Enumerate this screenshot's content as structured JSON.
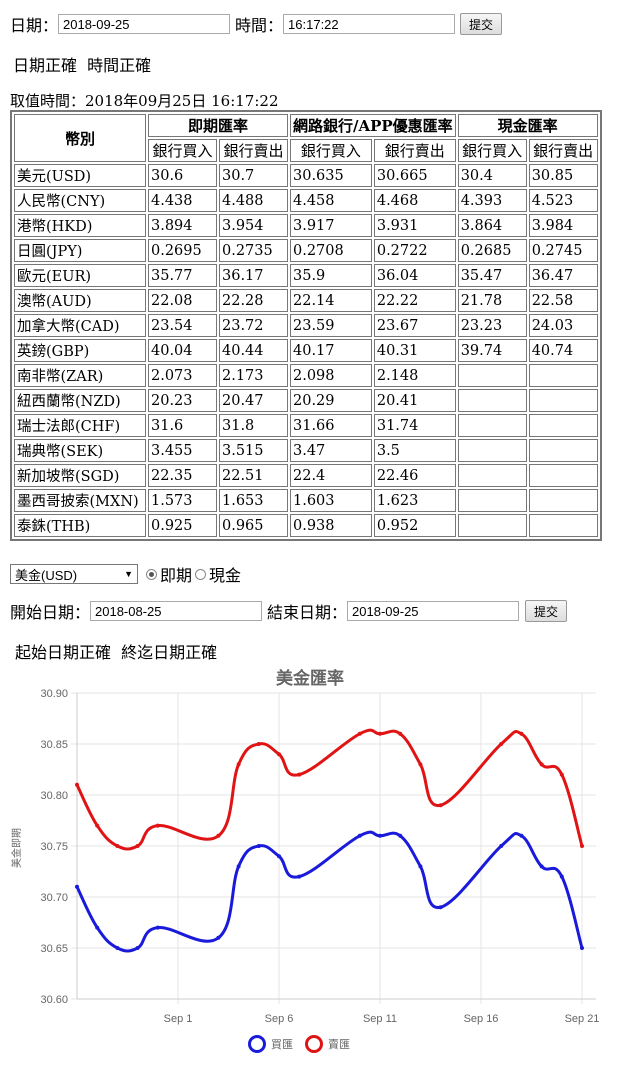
{
  "query": {
    "date_label": "日期：",
    "date_value": "2018-09-25",
    "time_label": "時間：",
    "time_value": "16:17:22",
    "submit_label": "提交",
    "status": "日期正確  時間正確"
  },
  "rates": {
    "fetch_time": "取值時間：2018年09月25日 16:17:22",
    "currency_header": "幣別",
    "groups": [
      "即期匯率",
      "網路銀行/APP優惠匯率",
      "現金匯率"
    ],
    "subheaders": [
      "銀行買入",
      "銀行賣出",
      "銀行買入",
      "銀行賣出",
      "銀行買入",
      "銀行賣出"
    ],
    "rows": [
      {
        "currency": "美元(USD)",
        "values": [
          "30.6",
          "30.7",
          "30.635",
          "30.665",
          "30.4",
          "30.85"
        ]
      },
      {
        "currency": "人民幣(CNY)",
        "values": [
          "4.438",
          "4.488",
          "4.458",
          "4.468",
          "4.393",
          "4.523"
        ]
      },
      {
        "currency": "港幣(HKD)",
        "values": [
          "3.894",
          "3.954",
          "3.917",
          "3.931",
          "3.864",
          "3.984"
        ]
      },
      {
        "currency": "日圓(JPY)",
        "values": [
          "0.2695",
          "0.2735",
          "0.2708",
          "0.2722",
          "0.2685",
          "0.2745"
        ]
      },
      {
        "currency": "歐元(EUR)",
        "values": [
          "35.77",
          "36.17",
          "35.9",
          "36.04",
          "35.47",
          "36.47"
        ]
      },
      {
        "currency": "澳幣(AUD)",
        "values": [
          "22.08",
          "22.28",
          "22.14",
          "22.22",
          "21.78",
          "22.58"
        ]
      },
      {
        "currency": "加拿大幣(CAD)",
        "values": [
          "23.54",
          "23.72",
          "23.59",
          "23.67",
          "23.23",
          "24.03"
        ]
      },
      {
        "currency": "英鎊(GBP)",
        "values": [
          "40.04",
          "40.44",
          "40.17",
          "40.31",
          "39.74",
          "40.74"
        ]
      },
      {
        "currency": "南非幣(ZAR)",
        "values": [
          "2.073",
          "2.173",
          "2.098",
          "2.148",
          "",
          ""
        ]
      },
      {
        "currency": "紐西蘭幣(NZD)",
        "values": [
          "20.23",
          "20.47",
          "20.29",
          "20.41",
          "",
          ""
        ]
      },
      {
        "currency": "瑞士法郎(CHF)",
        "values": [
          "31.6",
          "31.8",
          "31.66",
          "31.74",
          "",
          ""
        ]
      },
      {
        "currency": "瑞典幣(SEK)",
        "values": [
          "3.455",
          "3.515",
          "3.47",
          "3.5",
          "",
          ""
        ]
      },
      {
        "currency": "新加坡幣(SGD)",
        "values": [
          "22.35",
          "22.51",
          "22.4",
          "22.46",
          "",
          ""
        ]
      },
      {
        "currency": "墨西哥披索(MXN)",
        "values": [
          "1.573",
          "1.653",
          "1.603",
          "1.623",
          "",
          ""
        ]
      },
      {
        "currency": "泰銖(THB)",
        "values": [
          "0.925",
          "0.965",
          "0.938",
          "0.952",
          "",
          ""
        ]
      }
    ]
  },
  "history": {
    "currency_selected": "美金(USD)",
    "mode_options": [
      "即期",
      "現金"
    ],
    "mode_selected": "即期",
    "start_label": "開始日期：",
    "start_value": "2018-08-25",
    "end_label": "結束日期：",
    "end_value": "2018-09-25",
    "submit_label": "提交",
    "status": "起始日期正確  終迄日期正確"
  },
  "colors": {
    "buy": "#1a1adb",
    "sell": "#e01414",
    "grid": "#e4e4e4",
    "axis_text": "#666666"
  },
  "chart_data": {
    "type": "line",
    "title": "美金匯率",
    "ylabel": "美金即期",
    "xlabel": "",
    "ylim": [
      30.6,
      30.9
    ],
    "yticks": [
      "30.60",
      "30.65",
      "30.70",
      "30.75",
      "30.80",
      "30.85",
      "30.90"
    ],
    "xticks": [
      "Sep 1",
      "Sep 6",
      "Sep 11",
      "Sep 16",
      "Sep 21"
    ],
    "x": [
      "2018-08-27",
      "2018-08-28",
      "2018-08-29",
      "2018-08-30",
      "2018-08-31",
      "2018-09-03",
      "2018-09-04",
      "2018-09-05",
      "2018-09-06",
      "2018-09-07",
      "2018-09-10",
      "2018-09-11",
      "2018-09-12",
      "2018-09-13",
      "2018-09-14",
      "2018-09-17",
      "2018-09-18",
      "2018-09-19",
      "2018-09-20",
      "2018-09-21"
    ],
    "series": [
      {
        "name": "買匯",
        "values": [
          30.71,
          30.67,
          30.65,
          30.65,
          30.67,
          30.66,
          30.73,
          30.75,
          30.74,
          30.72,
          30.76,
          30.76,
          30.76,
          30.73,
          30.69,
          30.75,
          30.76,
          30.73,
          30.72,
          30.65
        ]
      },
      {
        "name": "賣匯",
        "values": [
          30.81,
          30.77,
          30.75,
          30.75,
          30.77,
          30.76,
          30.83,
          30.85,
          30.84,
          30.82,
          30.86,
          30.86,
          30.86,
          30.83,
          30.79,
          30.85,
          30.86,
          30.83,
          30.82,
          30.75
        ]
      }
    ],
    "grid": true,
    "legend": "bottom-center"
  }
}
